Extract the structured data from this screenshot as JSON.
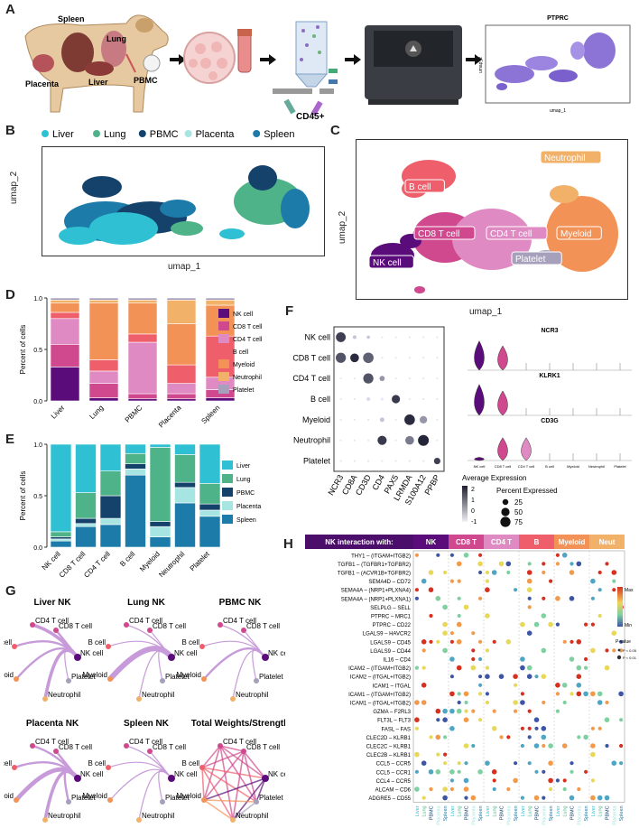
{
  "panels": {
    "a": "A",
    "b": "B",
    "c": "C",
    "d": "D",
    "e": "E",
    "f": "F",
    "g": "G",
    "h": "H"
  },
  "panel_a": {
    "organs": [
      "Spleen",
      "Lung",
      "Placenta",
      "Liver",
      "PBMC"
    ],
    "cd45_label": "CD45+",
    "umap_title": "PTPRC",
    "umap_x": "umap_1",
    "umap_y": "umap_2"
  },
  "colors": {
    "Liver": "#2fc1d3",
    "Lung": "#4fb38a",
    "PBMC": "#15426b",
    "Placenta": "#a6e5e1",
    "Spleen": "#1c7ba8",
    "NK cell": "#5a0d7a",
    "CD8 T cell": "#d0488d",
    "CD4 T cell": "#e08ac3",
    "B cell": "#ee5e6b",
    "Myeloid": "#f39257",
    "Neutrophil": "#f1b169",
    "Platelet": "#a7a0bd"
  },
  "panel_b": {
    "legend": [
      "Liver",
      "Lung",
      "PBMC",
      "Placenta",
      "Spleen"
    ],
    "xlabel": "umap_1",
    "ylabel": "umap_2"
  },
  "panel_c": {
    "labels": [
      "B cell",
      "Neutrophil",
      "CD8 T cell",
      "CD4 T cell",
      "Myeloid",
      "NK cell",
      "Platelet"
    ],
    "xlabel": "umap_1",
    "ylabel": "umap_2"
  },
  "chart_data": [
    {
      "type": "bar",
      "title": "D",
      "stacked": true,
      "categories": [
        "Liver",
        "Lung",
        "PBMC",
        "Placenta",
        "Spleen"
      ],
      "ylabel": "Percent of cells",
      "yticks": [
        "0.0",
        "0.5",
        "1.0"
      ],
      "ylim": [
        0,
        1
      ],
      "series": [
        {
          "name": "NK cell",
          "values": [
            0.33,
            0.03,
            0.02,
            0.02,
            0.03
          ]
        },
        {
          "name": "CD8 T cell",
          "values": [
            0.22,
            0.14,
            0.05,
            0.05,
            0.08
          ]
        },
        {
          "name": "CD4 T cell",
          "values": [
            0.25,
            0.12,
            0.5,
            0.1,
            0.12
          ]
        },
        {
          "name": "B cell",
          "values": [
            0.06,
            0.11,
            0.08,
            0.18,
            0.4
          ]
        },
        {
          "name": "Myeloid",
          "values": [
            0.09,
            0.55,
            0.3,
            0.4,
            0.3
          ]
        },
        {
          "name": "Neutrophil",
          "values": [
            0.03,
            0.03,
            0.03,
            0.23,
            0.05
          ]
        },
        {
          "name": "Platelet",
          "values": [
            0.02,
            0.02,
            0.02,
            0.02,
            0.02
          ]
        }
      ]
    },
    {
      "type": "bar",
      "title": "E",
      "stacked": true,
      "categories": [
        "NK cell",
        "CD8 T cell",
        "CD4 T cell",
        "B cell",
        "Myeloid",
        "Neutrophil",
        "Platelet"
      ],
      "ylabel": "Percent of cells",
      "yticks": [
        "0.0",
        "0.5",
        "1.0"
      ],
      "ylim": [
        0,
        1
      ],
      "series": [
        {
          "name": "Spleen",
          "values": [
            0.06,
            0.2,
            0.22,
            0.7,
            0.1,
            0.43,
            0.3
          ]
        },
        {
          "name": "Placenta",
          "values": [
            0.02,
            0.03,
            0.06,
            0.06,
            0.1,
            0.15,
            0.06
          ]
        },
        {
          "name": "PBMC",
          "values": [
            0.02,
            0.05,
            0.22,
            0.05,
            0.05,
            0.05,
            0.06
          ]
        },
        {
          "name": "Lung",
          "values": [
            0.05,
            0.25,
            0.24,
            0.1,
            0.72,
            0.27,
            0.2
          ]
        },
        {
          "name": "Liver",
          "values": [
            0.85,
            0.47,
            0.26,
            0.09,
            0.03,
            0.1,
            0.38
          ]
        }
      ]
    },
    {
      "type": "scatter",
      "title": "F",
      "genes": [
        "NCR3",
        "CD8A",
        "CD3D",
        "CD4",
        "PAX5",
        "LRMDA",
        "S100A12",
        "PPBP"
      ],
      "cell_types": [
        "NK cell",
        "CD8 T cell",
        "CD4 T cell",
        "B cell",
        "Myeloid",
        "Neutrophil",
        "Platelet"
      ],
      "pct_expressed": [
        [
          70,
          10,
          8,
          3,
          3,
          3,
          3,
          3
        ],
        [
          75,
          55,
          80,
          3,
          3,
          3,
          3,
          3
        ],
        [
          3,
          3,
          75,
          20,
          3,
          3,
          3,
          3
        ],
        [
          3,
          3,
          10,
          5,
          50,
          3,
          3,
          3
        ],
        [
          3,
          3,
          3,
          15,
          3,
          80,
          40,
          3
        ],
        [
          3,
          3,
          3,
          60,
          3,
          55,
          85,
          3
        ],
        [
          3,
          3,
          3,
          3,
          3,
          3,
          3,
          30
        ]
      ],
      "avg_expression": [
        [
          1.5,
          -0.5,
          -0.5,
          -1,
          -1,
          -1,
          -1,
          -1
        ],
        [
          1.2,
          1.8,
          1.0,
          -1,
          -1,
          -1,
          -1,
          -1
        ],
        [
          -1,
          -1,
          1.2,
          0.2,
          -1,
          -1,
          -1,
          -1
        ],
        [
          -1,
          -1,
          -0.8,
          -1,
          1.6,
          -1,
          -1,
          -1
        ],
        [
          -1,
          -1,
          -1,
          -0.5,
          -1,
          1.8,
          0.2,
          -1
        ],
        [
          -1,
          -1,
          -1,
          1.6,
          -1,
          0.6,
          1.9,
          -1
        ],
        [
          -1,
          -1,
          -1,
          -1,
          -1,
          -1,
          -1,
          1.5
        ]
      ],
      "legend_title_color": "Average Expression",
      "color_ticks": [
        "2",
        "1",
        "0",
        "-1"
      ],
      "legend_title_size": "Percent Expressed",
      "size_ticks": [
        "25",
        "50",
        "75"
      ],
      "violin_titles": [
        "NCR3",
        "KLRK1",
        "CD3G"
      ],
      "violin_xlabels": [
        "NK cell",
        "CD8 T cell",
        "CD4 T cell",
        "B cell",
        "Myeloid",
        "Neutrophil",
        "Platelet"
      ],
      "violin_heights": [
        [
          0.9,
          0.75,
          0.05,
          0.02,
          0.02,
          0.02,
          0.02
        ],
        [
          0.95,
          0.75,
          0.05,
          0.02,
          0.02,
          0.02,
          0.02
        ],
        [
          0.1,
          0.7,
          0.7,
          0.02,
          0.02,
          0.02,
          0.02
        ]
      ]
    },
    {
      "type": "network",
      "title": "G",
      "subplots": [
        {
          "name": "Liver NK",
          "weights": {
            "CD4 T cell": 3,
            "CD8 T cell": 2,
            "B cell": 2,
            "Myeloid": 2,
            "Platelet": 1,
            "Neutrophil": 3
          }
        },
        {
          "name": "Lung NK",
          "weights": {
            "CD4 T cell": 1,
            "CD8 T cell": 1,
            "B cell": 1,
            "Myeloid": 5,
            "Platelet": 1,
            "Neutrophil": 1
          }
        },
        {
          "name": "PBMC NK",
          "weights": {
            "CD4 T cell": 1,
            "CD8 T cell": 1,
            "B cell": 1,
            "Myeloid": 2,
            "Platelet": 1,
            "Neutrophil": 1
          }
        },
        {
          "name": "Placenta NK",
          "weights": {
            "CD4 T cell": 2,
            "CD8 T cell": 2,
            "B cell": 2,
            "Myeloid": 4,
            "Platelet": 2,
            "Neutrophil": 3
          }
        },
        {
          "name": "Spleen NK",
          "weights": {
            "CD4 T cell": 1,
            "CD8 T cell": 1,
            "B cell": 1,
            "Myeloid": 1,
            "Platelet": 1,
            "Neutrophil": 1
          }
        },
        {
          "name": "Total Weights/Strength",
          "weights": {}
        }
      ],
      "nodes": [
        "CD4 T cell",
        "CD8 T cell",
        "B cell",
        "NK cell",
        "Myeloid",
        "Platelet",
        "Neutrophil"
      ]
    },
    {
      "type": "scatter",
      "title": "H",
      "header": "NK interaction with:",
      "groups": [
        "NK",
        "CD8 T",
        "CD4 T",
        "B",
        "Myeloid",
        "Neut"
      ],
      "group_colors": [
        "#5a0d7a",
        "#d0488d",
        "#e08ac3",
        "#ee5e6b",
        "#f39257",
        "#f1b169"
      ],
      "tissues": [
        "Liver",
        "Lung",
        "PBMC",
        "Placenta",
        "Spleen"
      ],
      "pairs": [
        "THY1 – (ITGAM+ITGB2)",
        "TGFB1 – (TGFBR1+TGFBR2)",
        "TGFB1 – (ACVR1B+TGFBR2)",
        "SEMA4D – CD72",
        "SEMA4A – (NRP1+PLXNA4)",
        "SEMA4A – (NRP1+PLXNA1)",
        "SELPLG – SELL",
        "PTPRC – MRC1",
        "PTPRC – CD22",
        "LGALS9 – HAVCR2",
        "LGALS9 – CD45",
        "LGALS9 – CD44",
        "IL16 – CD4",
        "ICAM2 – (ITGAM+ITGB2)",
        "ICAM2 – (ITGAL+ITGB2)",
        "ICAM1 – ITGAL",
        "ICAM1 – (ITGAM+ITGB2)",
        "ICAM1 – (ITGAL+ITGB2)",
        "GZMA – F2RL3",
        "FLT3L – FLT3",
        "FASL – FAS",
        "CLEC2D – KLRB1",
        "CLEC2C – KLRB1",
        "CLEC2B – KLRB1",
        "CCL5 – CCR5",
        "CCL5 – CCR1",
        "CCL4 – CCR5",
        "ALCAM – CD6",
        "ADGRE5 – CD55"
      ],
      "color_legend": [
        "Max",
        "Min"
      ],
      "pvalue_title": "P-value",
      "pvalue_levels": [
        "P < 0.05",
        "P < 0.01"
      ]
    }
  ]
}
